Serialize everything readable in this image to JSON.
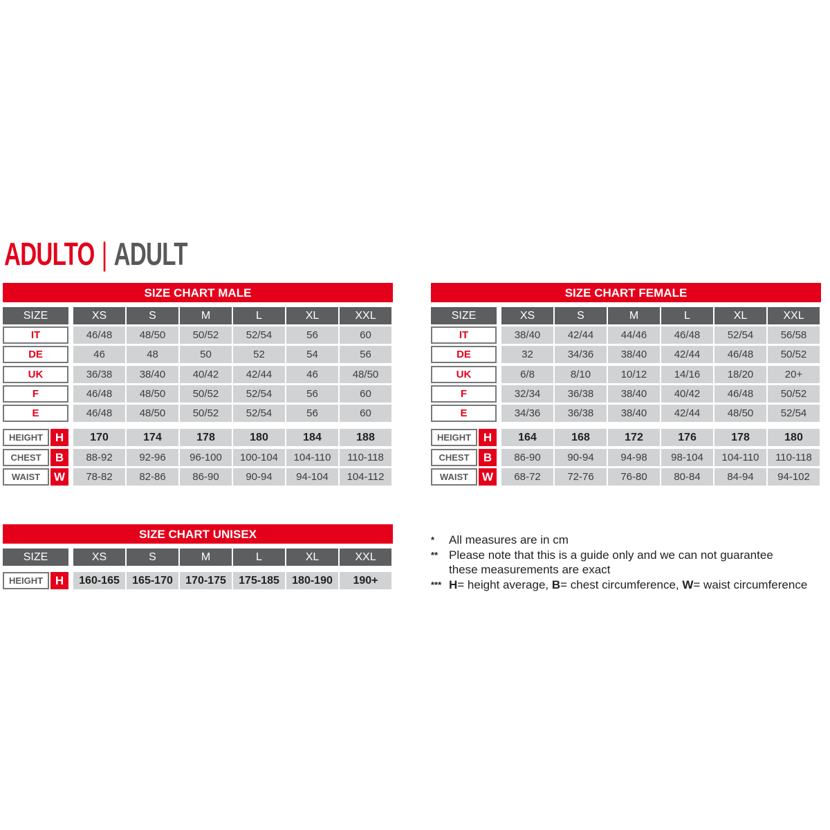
{
  "heading": {
    "primary": "ADULTO",
    "separator": "|",
    "secondary": "ADULT"
  },
  "colors": {
    "accent": "#e4001b",
    "header": "#5d5e60",
    "cell": "#d1d2d3"
  },
  "tables": [
    {
      "title": "SIZE CHART MALE",
      "size_label": "SIZE",
      "sizes": [
        "XS",
        "S",
        "M",
        "L",
        "XL",
        "XXL"
      ],
      "conversion": [
        {
          "label": "IT",
          "values": [
            "46/48",
            "48/50",
            "50/52",
            "52/54",
            "56",
            "60"
          ]
        },
        {
          "label": "DE",
          "values": [
            "46",
            "48",
            "50",
            "52",
            "54",
            "56"
          ]
        },
        {
          "label": "UK",
          "values": [
            "36/38",
            "38/40",
            "40/42",
            "42/44",
            "46",
            "48/50"
          ]
        },
        {
          "label": "F",
          "values": [
            "46/48",
            "48/50",
            "50/52",
            "52/54",
            "56",
            "60"
          ]
        },
        {
          "label": "E",
          "values": [
            "46/48",
            "48/50",
            "50/52",
            "52/54",
            "56",
            "60"
          ]
        }
      ],
      "measures": [
        {
          "label": "HEIGHT",
          "letter": "H",
          "values": [
            "170",
            "174",
            "178",
            "180",
            "184",
            "188"
          ]
        },
        {
          "label": "CHEST",
          "letter": "B",
          "values": [
            "88-92",
            "92-96",
            "96-100",
            "100-104",
            "104-110",
            "110-118"
          ]
        },
        {
          "label": "WAIST",
          "letter": "W",
          "values": [
            "78-82",
            "82-86",
            "86-90",
            "90-94",
            "94-104",
            "104-112"
          ]
        }
      ]
    },
    {
      "title": "SIZE CHART FEMALE",
      "size_label": "SIZE",
      "sizes": [
        "XS",
        "S",
        "M",
        "L",
        "XL",
        "XXL"
      ],
      "conversion": [
        {
          "label": "IT",
          "values": [
            "38/40",
            "42/44",
            "44/46",
            "46/48",
            "52/54",
            "56/58"
          ]
        },
        {
          "label": "DE",
          "values": [
            "32",
            "34/36",
            "38/40",
            "42/44",
            "46/48",
            "50/52"
          ]
        },
        {
          "label": "UK",
          "values": [
            "6/8",
            "8/10",
            "10/12",
            "14/16",
            "18/20",
            "20+"
          ]
        },
        {
          "label": "F",
          "values": [
            "32/34",
            "36/38",
            "38/40",
            "40/42",
            "46/48",
            "50/52"
          ]
        },
        {
          "label": "E",
          "values": [
            "34/36",
            "36/38",
            "38/40",
            "42/44",
            "48/50",
            "52/54"
          ]
        }
      ],
      "measures": [
        {
          "label": "HEIGHT",
          "letter": "H",
          "values": [
            "164",
            "168",
            "172",
            "176",
            "178",
            "180"
          ]
        },
        {
          "label": "CHEST",
          "letter": "B",
          "values": [
            "86-90",
            "90-94",
            "94-98",
            "98-104",
            "104-110",
            "110-118"
          ]
        },
        {
          "label": "WAIST",
          "letter": "W",
          "values": [
            "68-72",
            "72-76",
            "76-80",
            "80-84",
            "84-94",
            "94-102"
          ]
        }
      ]
    },
    {
      "title": "SIZE CHART UNISEX",
      "size_label": "SIZE",
      "sizes": [
        "XS",
        "S",
        "M",
        "L",
        "XL",
        "XXL"
      ],
      "conversion": [],
      "measures": [
        {
          "label": "HEIGHT",
          "letter": "H",
          "values": [
            "160-165",
            "165-170",
            "170-175",
            "175-185",
            "180-190",
            "190+"
          ]
        }
      ]
    }
  ],
  "notes": [
    {
      "mark": "*",
      "text": "All measures are in cm"
    },
    {
      "mark": "**",
      "text": "Please note that this is a guide only and we can not guarantee these measurements are exact"
    },
    {
      "mark": "***",
      "parts": [
        {
          "b": "H",
          "t": "= height average, "
        },
        {
          "b": "B",
          "t": "= chest circumference, "
        },
        {
          "b": "W",
          "t": "= waist circumference"
        }
      ]
    }
  ]
}
